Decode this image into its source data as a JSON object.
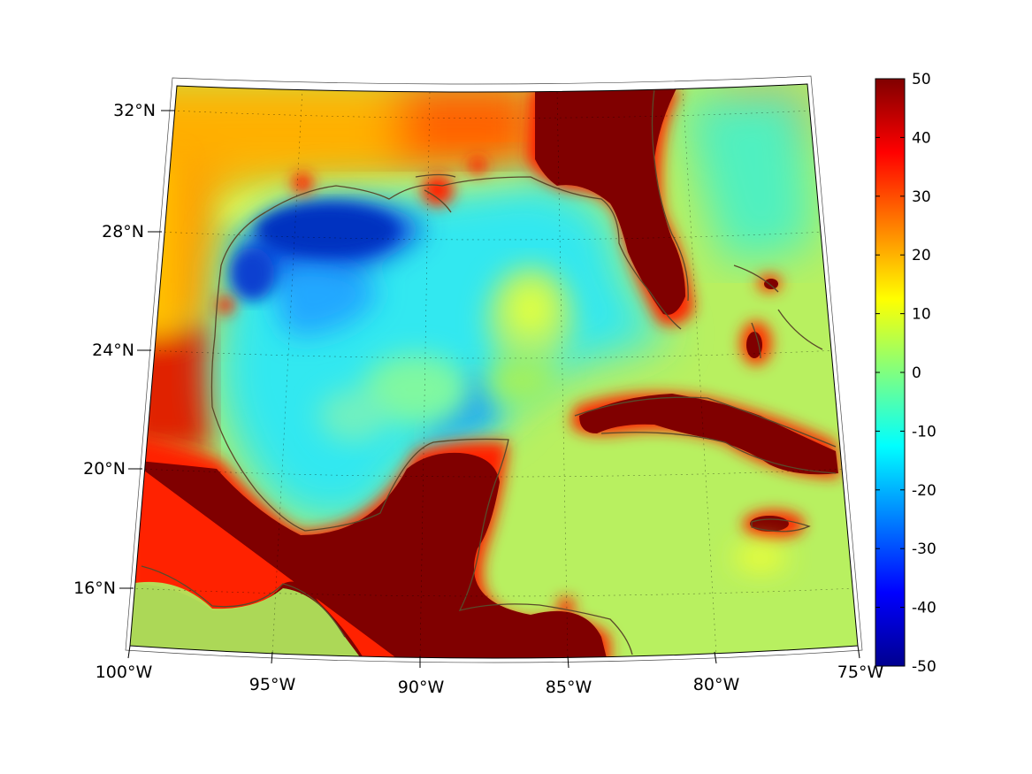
{
  "map": {
    "projection": "conic",
    "lon_range": [
      -100,
      -75
    ],
    "lat_range": [
      14,
      33
    ],
    "lon_ticks": [
      "100°W",
      "95°W",
      "90°W",
      "85°W",
      "80°W",
      "75°W"
    ],
    "lat_ticks": [
      "16°N",
      "20°N",
      "24°N",
      "28°N",
      "32°N"
    ],
    "grid": true,
    "coastline_color": "#5a4a2a"
  },
  "colorbar": {
    "min": -50,
    "max": 50,
    "colormap": "jet",
    "ticks": [
      "50",
      "40",
      "30",
      "20",
      "10",
      "0",
      "-10",
      "-20",
      "-30",
      "-40",
      "-50"
    ]
  }
}
